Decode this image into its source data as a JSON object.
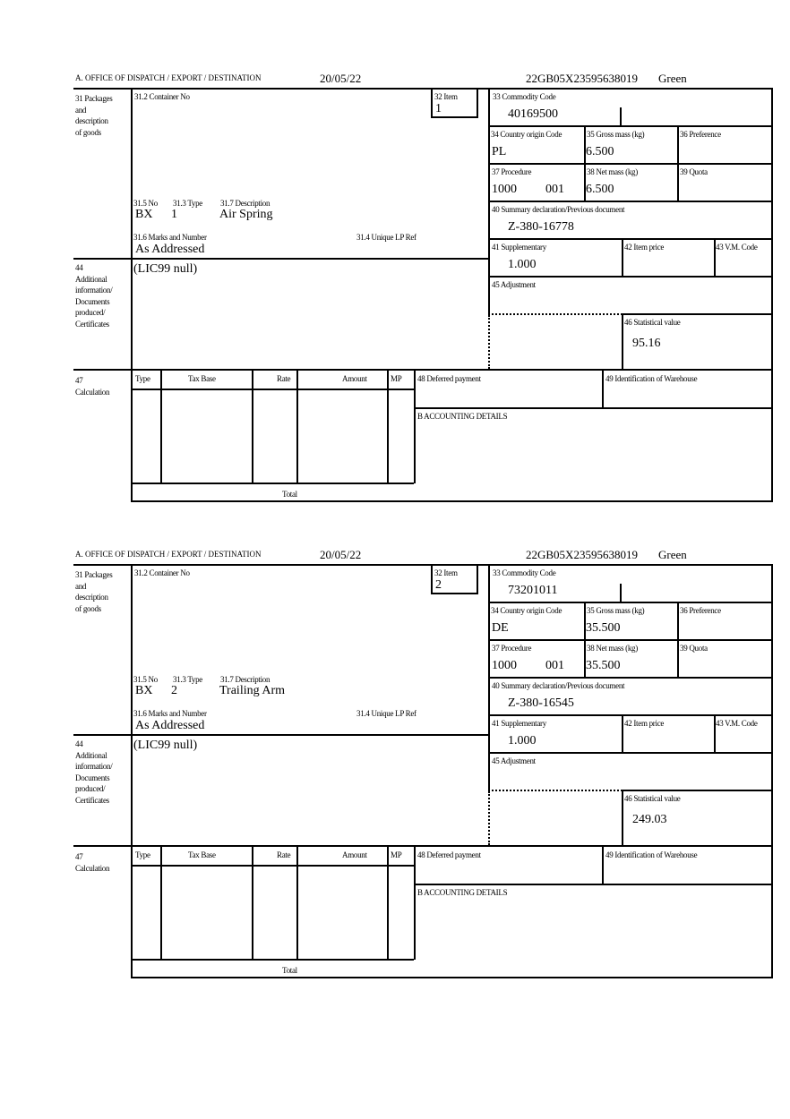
{
  "labels": {
    "office": "A. OFFICE OF DISPATCH / EXPORT / DESTINATION",
    "box31": [
      "31 Packages",
      "and",
      "description",
      "of goods"
    ],
    "container_no": "31.2 Container No",
    "item": "32 Item",
    "no": "31.5 No",
    "type": "31.3 Type",
    "description": "31.7 Description",
    "marks": "31.6 Marks and Number",
    "unique_lp": "31.4 Unique LP Ref",
    "box44": [
      "44",
      "Additional",
      "information/",
      "Documents",
      "produced/",
      "Certificates"
    ],
    "commodity": "33 Commodity Code",
    "country": "34 Country origin Code",
    "gross": "35 Gross mass (kg)",
    "preference": "36 Preference",
    "procedure": "37 Procedure",
    "net": "38 Net mass (kg)",
    "quota": "39 Quota",
    "summary": "40 Summary declaration/Previous document",
    "supplementary": "41 Supplementary",
    "item_price": "42 Item price",
    "vm_code": "43 V.M. Code",
    "adjustment": "45 Adjustment",
    "statistical": "46 Statistical value",
    "box47": [
      "47",
      "Calculation"
    ],
    "calc_cols": [
      "Type",
      "Tax Base",
      "Rate",
      "Amount",
      "MP"
    ],
    "total": "Total",
    "deferred": "48 Deferred payment",
    "warehouse": "49 Identification of Warehouse",
    "accounting": "B ACCOUNTING DETAILS"
  },
  "forms": [
    {
      "date": "20/05/22",
      "reference": "22GB05X23595638019",
      "route": "Green",
      "item": "1",
      "no": "BX",
      "type": "1",
      "description": "Air Spring",
      "marks": "As Addressed",
      "additional": "(LIC99 null)",
      "commodity": "40169500",
      "country": "PL",
      "gross": "6.500",
      "procedure": "1000",
      "procedure_ext": "001",
      "net": "6.500",
      "summary": "Z-380-16778",
      "supplementary": "1.000",
      "statistical": "95.16"
    },
    {
      "date": "20/05/22",
      "reference": "22GB05X23595638019",
      "route": "Green",
      "item": "2",
      "no": "BX",
      "type": "2",
      "description": "Trailing Arm",
      "marks": "As Addressed",
      "additional": "(LIC99 null)",
      "commodity": "73201011",
      "country": "DE",
      "gross": "35.500",
      "procedure": "1000",
      "procedure_ext": "001",
      "net": "35.500",
      "summary": "Z-380-16545",
      "supplementary": "1.000",
      "statistical": "249.03"
    }
  ]
}
